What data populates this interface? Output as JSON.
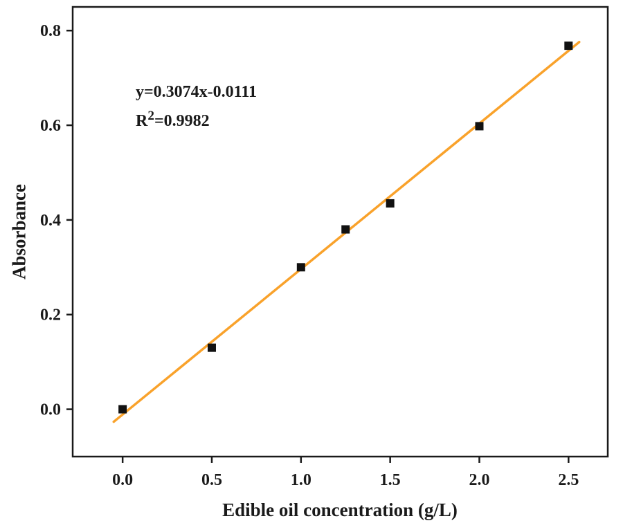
{
  "chart_data": {
    "type": "scatter",
    "title": "",
    "xlabel": "Edible oil concentration (g/L)",
    "ylabel": "Absorbance",
    "x": [
      0.0,
      0.5,
      1.0,
      1.25,
      1.5,
      2.0,
      2.5
    ],
    "y": [
      0.0,
      0.13,
      0.3,
      0.38,
      0.435,
      0.598,
      0.768
    ],
    "fit": {
      "slope": 0.3074,
      "intercept": -0.0111,
      "x_start": -0.05,
      "x_end": 2.56,
      "color": "#F9A22B",
      "width": 3.5
    },
    "xlim": [
      -0.28,
      2.72
    ],
    "ylim": [
      -0.1,
      0.85
    ],
    "xticks": [
      0.0,
      0.5,
      1.0,
      1.5,
      2.0,
      2.5
    ],
    "yticks": [
      0.0,
      0.2,
      0.4,
      0.6,
      0.8
    ],
    "grid": false,
    "legend": "none",
    "marker": {
      "shape": "square",
      "color": "#111111",
      "size": 12
    },
    "frame_color": "#1a1a1a",
    "annotation": {
      "equation": "y=0.3074x-0.0111",
      "r_label": "R",
      "r_sup": "2",
      "r_value": "=0.9982"
    }
  }
}
